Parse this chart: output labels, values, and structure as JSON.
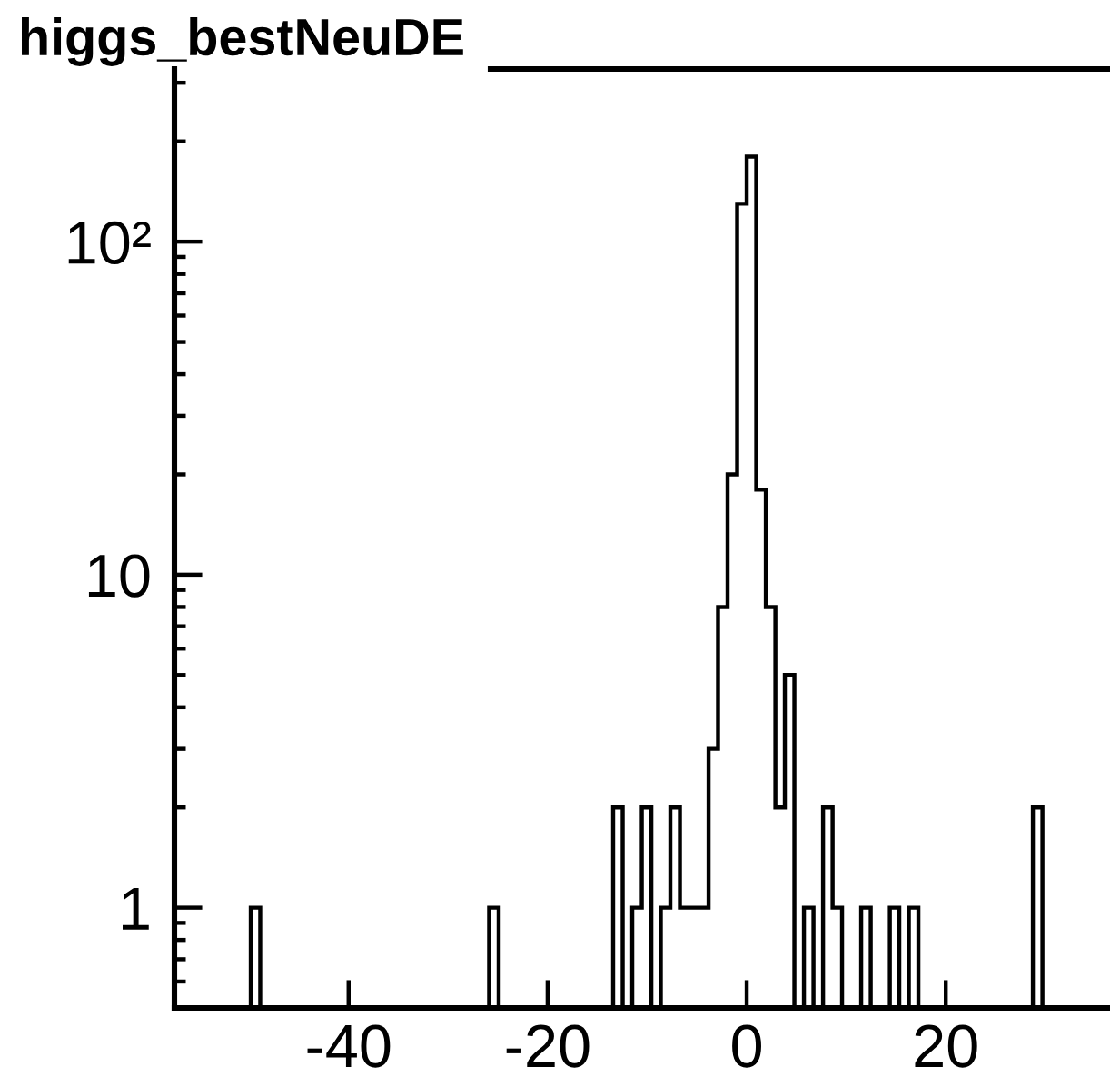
{
  "chart_data": {
    "type": "histogram",
    "title": "higgs_bestNeuDE",
    "color": "#000000",
    "log": true,
    "bins": [
      -57.5,
      -56.54,
      -55.58,
      -54.63,
      -53.67,
      -52.71,
      -51.75,
      -50.79,
      -49.83,
      -48.88,
      -47.92,
      -46.96,
      -46.0,
      -45.04,
      -44.08,
      -43.13,
      -42.17,
      -41.21,
      -40.25,
      -39.29,
      -38.33,
      -37.38,
      -36.42,
      -35.46,
      -34.5,
      -33.54,
      -32.58,
      -31.63,
      -30.67,
      -29.71,
      -28.75,
      -27.79,
      -26.83,
      -25.88,
      -24.92,
      -23.96,
      -23.0,
      -22.04,
      -21.08,
      -20.13,
      -19.17,
      -18.21,
      -17.25,
      -16.29,
      -15.33,
      -14.38,
      -13.42,
      -12.46,
      -11.5,
      -10.54,
      -9.58,
      -8.63,
      -7.67,
      -6.71,
      -5.75,
      -4.79,
      -3.83,
      -2.88,
      -1.92,
      -0.96,
      0,
      0.96,
      1.92,
      2.88,
      3.83,
      4.79,
      5.75,
      6.71,
      7.67,
      8.63,
      9.58,
      10.54,
      11.5,
      12.46,
      13.42,
      14.38,
      15.33,
      16.29,
      17.25,
      18.21,
      19.17,
      20.13,
      21.08,
      22.04,
      23.0,
      23.96,
      24.92,
      25.88,
      26.83,
      27.79,
      28.75,
      29.71,
      30.67,
      31.63,
      32.58,
      33.54,
      34.5,
      35.46
    ],
    "values": [
      null,
      null,
      null,
      null,
      null,
      null,
      null,
      null,
      1,
      null,
      null,
      null,
      null,
      null,
      null,
      null,
      null,
      null,
      null,
      null,
      null,
      null,
      null,
      null,
      null,
      null,
      null,
      null,
      null,
      null,
      null,
      null,
      null,
      1,
      null,
      null,
      null,
      null,
      null,
      null,
      null,
      null,
      null,
      null,
      null,
      null,
      2,
      null,
      1,
      2,
      null,
      1,
      2,
      1,
      1,
      1,
      3,
      8,
      20,
      130,
      180,
      18,
      8,
      2,
      5,
      null,
      1,
      null,
      2,
      1,
      null,
      null,
      1,
      null,
      null,
      1,
      null,
      1,
      null,
      null,
      null,
      null,
      null,
      null,
      null,
      null,
      null,
      null,
      null,
      null,
      2,
      null,
      null,
      null,
      null,
      null,
      null
    ],
    "xlim": [
      -57.5,
      36.5
    ],
    "ylim": [
      0.5,
      330
    ],
    "xticks": [
      -40,
      -20,
      0,
      20
    ],
    "yticks": [
      {
        "value": 0.6,
        "label": null
      },
      {
        "value": 0.7,
        "label": null
      },
      {
        "value": 0.8,
        "label": null
      },
      {
        "value": 0.9,
        "label": null
      },
      1,
      {
        "value": 2,
        "label": null
      },
      {
        "value": 3,
        "label": null
      },
      {
        "value": 4,
        "label": null
      },
      {
        "value": 5,
        "label": null
      },
      {
        "value": 6,
        "label": null
      },
      {
        "value": 7,
        "label": null
      },
      {
        "value": 8,
        "label": null
      },
      {
        "value": 9,
        "label": null
      },
      10,
      {
        "value": 20,
        "label": null
      },
      {
        "value": 30,
        "label": null
      },
      {
        "value": 40,
        "label": null
      },
      {
        "value": 50,
        "label": null
      },
      {
        "value": 60,
        "label": null
      },
      {
        "value": 70,
        "label": null
      },
      {
        "value": 80,
        "label": null
      },
      {
        "value": 90,
        "label": null
      },
      {
        "value": 100,
        "label": "10²"
      },
      {
        "value": 200,
        "label": null
      },
      {
        "value": 300,
        "label": null
      }
    ]
  }
}
